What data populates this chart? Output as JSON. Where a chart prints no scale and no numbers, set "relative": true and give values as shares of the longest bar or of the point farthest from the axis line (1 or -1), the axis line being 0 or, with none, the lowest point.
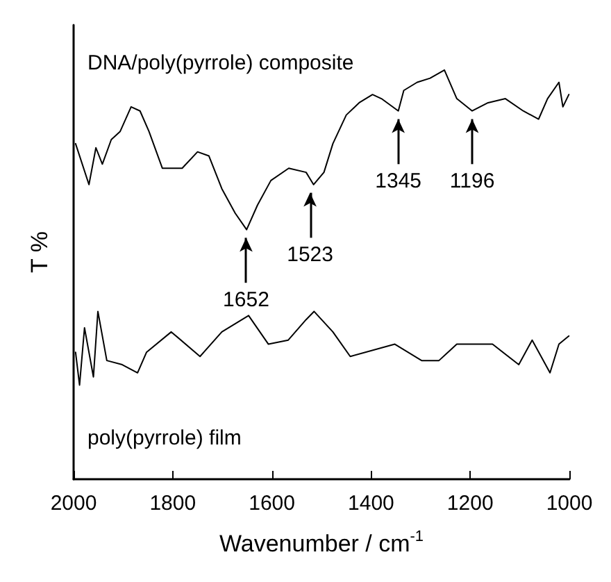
{
  "chart_data": {
    "type": "line",
    "relative": true,
    "xlabel": "Wavenumber / cm$^{-1}$",
    "ylabel": "T %",
    "xlim": [
      2000,
      1000
    ],
    "xticks": [
      2000,
      1800,
      1600,
      1400,
      1200,
      1000
    ],
    "marker": "none",
    "line_style": "solid",
    "series": [
      {
        "name": "DNA/poly(pyrrole) composite",
        "color": "#000000",
        "x": [
          1996,
          1969,
          1955,
          1942,
          1924,
          1906,
          1884,
          1866,
          1848,
          1821,
          1781,
          1750,
          1727,
          1701,
          1674,
          1651,
          1629,
          1602,
          1566,
          1531,
          1516,
          1495,
          1477,
          1450,
          1424,
          1397,
          1379,
          1345,
          1334,
          1307,
          1281,
          1252,
          1227,
          1196,
          1164,
          1129,
          1093,
          1062,
          1044,
          1021,
          1013,
          1001
        ],
        "values": [
          0.82,
          0.72,
          0.81,
          0.77,
          0.83,
          0.85,
          0.91,
          0.9,
          0.85,
          0.76,
          0.76,
          0.8,
          0.79,
          0.71,
          0.65,
          0.61,
          0.67,
          0.73,
          0.76,
          0.75,
          0.72,
          0.75,
          0.82,
          0.89,
          0.92,
          0.94,
          0.93,
          0.9,
          0.95,
          0.97,
          0.98,
          1.0,
          0.93,
          0.9,
          0.92,
          0.93,
          0.9,
          0.88,
          0.93,
          0.97,
          0.91,
          0.94
        ]
      },
      {
        "name": "poly(pyrrole) film",
        "color": "#000000",
        "x": [
          1996,
          1988,
          1978,
          1960,
          1951,
          1933,
          1902,
          1871,
          1853,
          1803,
          1745,
          1701,
          1647,
          1607,
          1567,
          1531,
          1515,
          1477,
          1442,
          1352,
          1298,
          1263,
          1227,
          1155,
          1102,
          1075,
          1039,
          1021,
          1001
        ],
        "values": [
          0.31,
          0.23,
          0.37,
          0.25,
          0.41,
          0.29,
          0.28,
          0.26,
          0.31,
          0.36,
          0.3,
          0.36,
          0.4,
          0.33,
          0.34,
          0.39,
          0.41,
          0.36,
          0.3,
          0.33,
          0.29,
          0.29,
          0.33,
          0.33,
          0.28,
          0.34,
          0.26,
          0.33,
          0.35
        ]
      }
    ],
    "annotations": [
      {
        "text": "1652",
        "x": 1652,
        "y": 0.61
      },
      {
        "text": "1523",
        "x": 1523,
        "y": 0.72
      },
      {
        "text": "1345",
        "x": 1345,
        "y": 0.9
      },
      {
        "text": "1196",
        "x": 1196,
        "y": 0.9
      }
    ]
  }
}
